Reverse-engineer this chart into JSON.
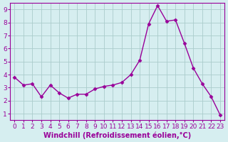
{
  "x": [
    0,
    1,
    2,
    3,
    4,
    5,
    6,
    7,
    8,
    9,
    10,
    11,
    12,
    13,
    14,
    15,
    16,
    17,
    18,
    19,
    20,
    21,
    22,
    23
  ],
  "y": [
    3.8,
    3.2,
    3.3,
    2.3,
    3.2,
    2.6,
    2.2,
    2.5,
    2.5,
    2.9,
    3.1,
    3.2,
    3.4,
    4.0,
    5.1,
    7.9,
    9.3,
    8.1,
    8.2,
    6.4,
    4.5,
    3.3,
    2.3,
    0.9
  ],
  "xlim": [
    -0.5,
    23.5
  ],
  "ylim": [
    0.5,
    9.5
  ],
  "xticks": [
    0,
    1,
    2,
    3,
    4,
    5,
    6,
    7,
    8,
    9,
    10,
    11,
    12,
    13,
    14,
    15,
    16,
    17,
    18,
    19,
    20,
    21,
    22,
    23
  ],
  "yticks": [
    1,
    2,
    3,
    4,
    5,
    6,
    7,
    8,
    9
  ],
  "xlabel": "Windchill (Refroidissement éolien,°C)",
  "line_color": "#990099",
  "marker_color": "#990099",
  "bg_color": "#d6eef0",
  "grid_color": "#aacccc",
  "axis_color": "#990099",
  "tick_color": "#990099",
  "label_color": "#990099",
  "xlabel_fontsize": 7,
  "tick_fontsize": 6.5
}
